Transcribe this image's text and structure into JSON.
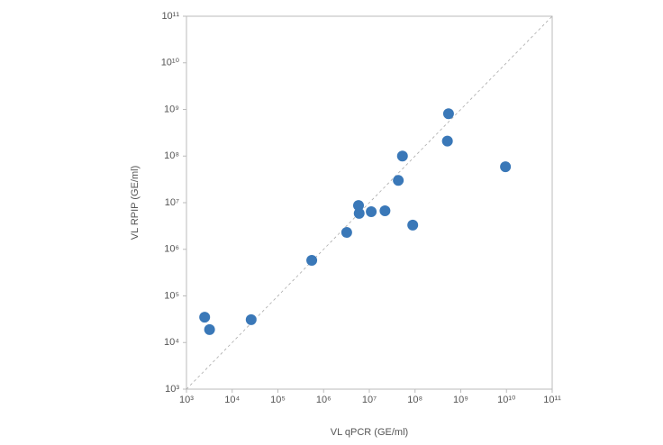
{
  "chart_data": {
    "type": "scatter",
    "x_label": "VL qPCR (GE/ml)",
    "y_label": "VL RPIP (GE/ml)",
    "series": [
      {
        "color": "#3a78b8",
        "x": [
          2500,
          3200,
          26000,
          550000,
          3200000,
          5800000,
          6000000,
          11000000,
          22000000,
          43000000,
          53000000,
          89000000,
          540000000,
          510000000,
          9500000000
        ],
        "values": [
          35000,
          19000,
          31000,
          580000,
          2300000,
          8700000,
          5900000,
          6400000,
          6700000,
          30000000,
          100000000,
          3300000,
          810000000,
          210000000,
          59000000
        ]
      }
    ],
    "xscale": "log",
    "yscale": "log",
    "xlim": [
      1000,
      100000000000
    ],
    "ylim": [
      1000,
      100000000000
    ],
    "xticks": [
      {
        "value": 1000,
        "label": "10³"
      },
      {
        "value": 10000,
        "label": "10⁴"
      },
      {
        "value": 100000,
        "label": "10⁵"
      },
      {
        "value": 1000000,
        "label": "10⁶"
      },
      {
        "value": 10000000,
        "label": "10⁷"
      },
      {
        "value": 100000000,
        "label": "10⁸"
      },
      {
        "value": 1000000000,
        "label": "10⁹"
      },
      {
        "value": 10000000000,
        "label": "10¹⁰"
      },
      {
        "value": 100000000000,
        "label": "10¹¹"
      }
    ],
    "yticks": [
      {
        "value": 1000,
        "label": "10³"
      },
      {
        "value": 10000,
        "label": "10⁴"
      },
      {
        "value": 100000,
        "label": "10⁵"
      },
      {
        "value": 1000000,
        "label": "10⁶"
      },
      {
        "value": 10000000,
        "label": "10⁷"
      },
      {
        "value": 100000000,
        "label": "10⁸"
      },
      {
        "value": 1000000000,
        "label": "10⁹"
      },
      {
        "value": 10000000000,
        "label": "10¹⁰"
      },
      {
        "value": 100000000000,
        "label": "10¹¹"
      }
    ],
    "identity_line": true
  }
}
